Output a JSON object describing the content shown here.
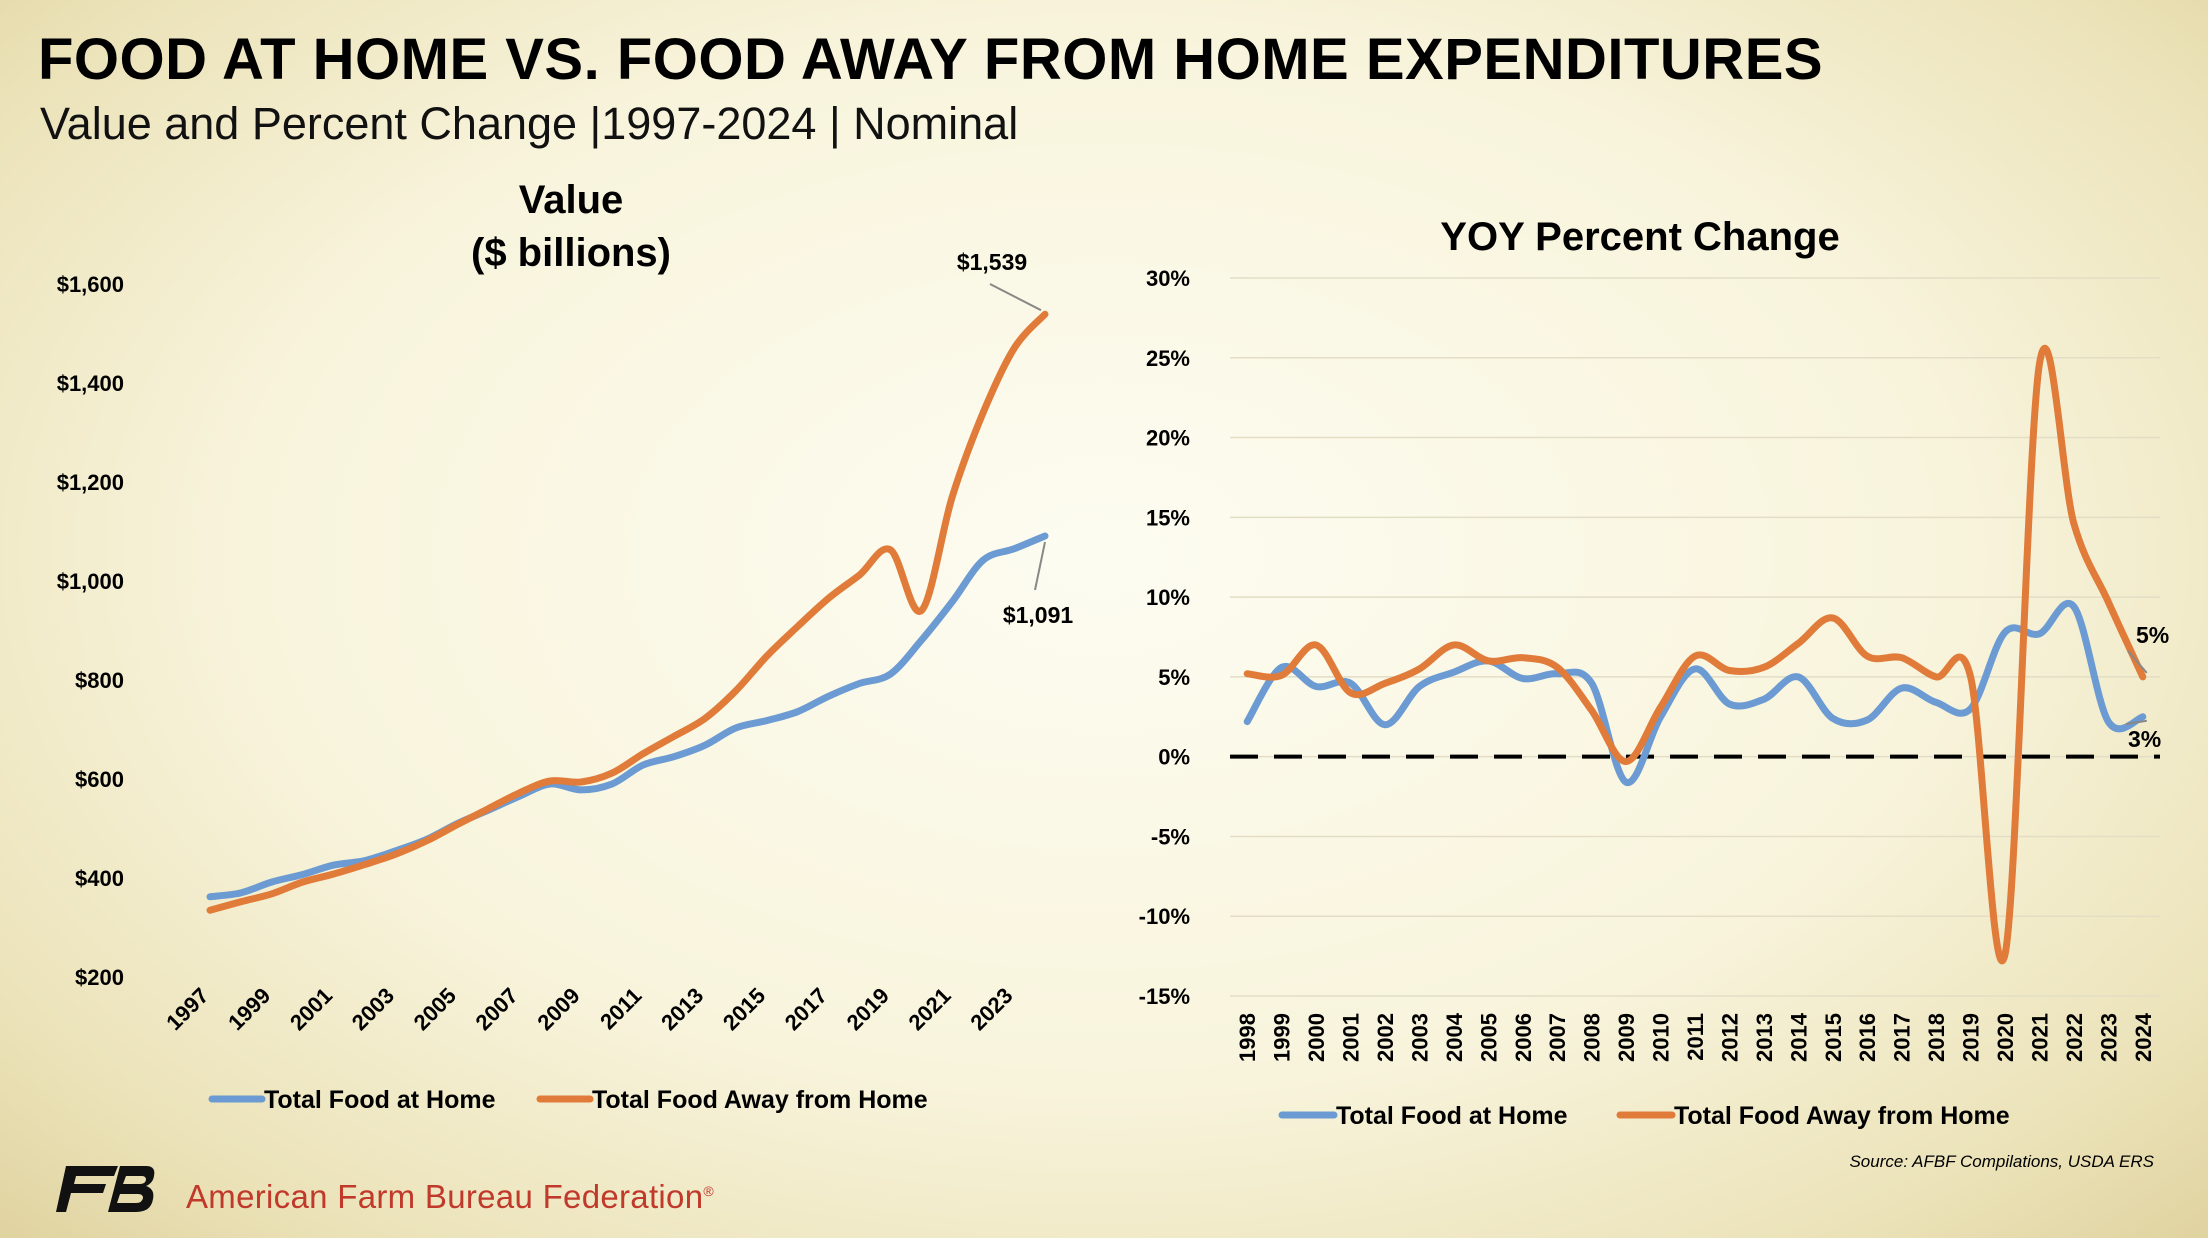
{
  "header": {
    "title": "FOOD AT HOME VS. FOOD AWAY FROM HOME EXPENDITURES",
    "subtitle": "Value and Percent Change |1997-2024 | Nominal"
  },
  "footer": {
    "source": "Source: AFBF Compilations, USDA ERS",
    "org_name": "American Farm Bureau Federation",
    "org_mark": "®",
    "logo": "FB"
  },
  "colors": {
    "home": "#6b9bd2",
    "away": "#e07b39",
    "grid": "#e3ddc6"
  },
  "chart_data": [
    {
      "type": "line",
      "title_lines": [
        "Value",
        "($ billions)"
      ],
      "x": [
        1997,
        1998,
        1999,
        2000,
        2001,
        2002,
        2003,
        2004,
        2005,
        2006,
        2007,
        2008,
        2009,
        2010,
        2011,
        2012,
        2013,
        2014,
        2015,
        2016,
        2017,
        2018,
        2019,
        2020,
        2021,
        2022,
        2023,
        2024
      ],
      "x_tick_labels": [
        "1997",
        "1999",
        "2001",
        "2003",
        "2005",
        "2007",
        "2009",
        "2011",
        "2013",
        "2015",
        "2017",
        "2019",
        "2021",
        "2023"
      ],
      "y_tick_labels": [
        "$200",
        "$400",
        "$600",
        "$800",
        "$1,000",
        "$1,200",
        "$1,400",
        "$1,600"
      ],
      "ylim": [
        200,
        1600
      ],
      "legend_position": "bottom",
      "series": [
        {
          "name": "Total Food at Home",
          "color_key": "home",
          "values": [
            362,
            370,
            392,
            407,
            426,
            435,
            455,
            478,
            510,
            537,
            565,
            590,
            578,
            590,
            628,
            645,
            668,
            703,
            718,
            736,
            767,
            793,
            812,
            880,
            958,
            1042,
            1065,
            1091
          ]
        },
        {
          "name": "Total Food Away from Home",
          "color_key": "away",
          "values": [
            335,
            352,
            368,
            392,
            408,
            427,
            448,
            475,
            508,
            540,
            572,
            596,
            594,
            612,
            651,
            686,
            722,
            778,
            848,
            908,
            965,
            1012,
            1063,
            940,
            1170,
            1340,
            1470,
            1539
          ]
        }
      ],
      "annotations": [
        {
          "text": "$1,539",
          "x": 2024,
          "y": 1539,
          "position": "above-left"
        },
        {
          "text": "$1,091",
          "x": 2024,
          "y": 1091,
          "position": "below"
        }
      ]
    },
    {
      "type": "line",
      "title": "YOY Percent Change",
      "x": [
        1998,
        1999,
        2000,
        2001,
        2002,
        2003,
        2004,
        2005,
        2006,
        2007,
        2008,
        2009,
        2010,
        2011,
        2012,
        2013,
        2014,
        2015,
        2016,
        2017,
        2018,
        2019,
        2020,
        2021,
        2022,
        2023,
        2024
      ],
      "x_tick_labels": [
        "1998",
        "1999",
        "2000",
        "2001",
        "2002",
        "2003",
        "2004",
        "2005",
        "2006",
        "2007",
        "2008",
        "2009",
        "2010",
        "2011",
        "2012",
        "2013",
        "2014",
        "2015",
        "2016",
        "2017",
        "2018",
        "2019",
        "2020",
        "2021",
        "2022",
        "2023",
        "2024"
      ],
      "y_tick_labels": [
        "-15%",
        "-10%",
        "-5%",
        "0%",
        "5%",
        "10%",
        "15%",
        "20%",
        "25%",
        "30%"
      ],
      "ylim": [
        -15,
        30
      ],
      "zero_line": "dashed",
      "legend_position": "bottom",
      "series": [
        {
          "name": "Total Food at Home",
          "color_key": "home",
          "values": [
            2.2,
            5.6,
            4.4,
            4.6,
            2.0,
            4.4,
            5.3,
            6.0,
            4.9,
            5.2,
            4.6,
            -1.6,
            2.5,
            5.5,
            3.3,
            3.6,
            5.0,
            2.4,
            2.3,
            4.3,
            3.4,
            3.0,
            7.8,
            7.7,
            9.4,
            2.2,
            2.5
          ]
        },
        {
          "name": "Total Food Away from Home",
          "color_key": "away",
          "values": [
            5.2,
            5.1,
            7.0,
            4.0,
            4.6,
            5.5,
            7.0,
            6.0,
            6.2,
            5.6,
            2.9,
            -0.3,
            3.1,
            6.3,
            5.4,
            5.6,
            7.1,
            8.7,
            6.3,
            6.2,
            5.0,
            5.0,
            -12.4,
            24.6,
            14.6,
            9.7,
            5.0
          ]
        }
      ],
      "annotations": [
        {
          "text": "5%",
          "x": 2024,
          "y": 5,
          "position": "above-right"
        },
        {
          "text": "3%",
          "x": 2024,
          "y": 2.5,
          "position": "below-right"
        }
      ]
    }
  ]
}
